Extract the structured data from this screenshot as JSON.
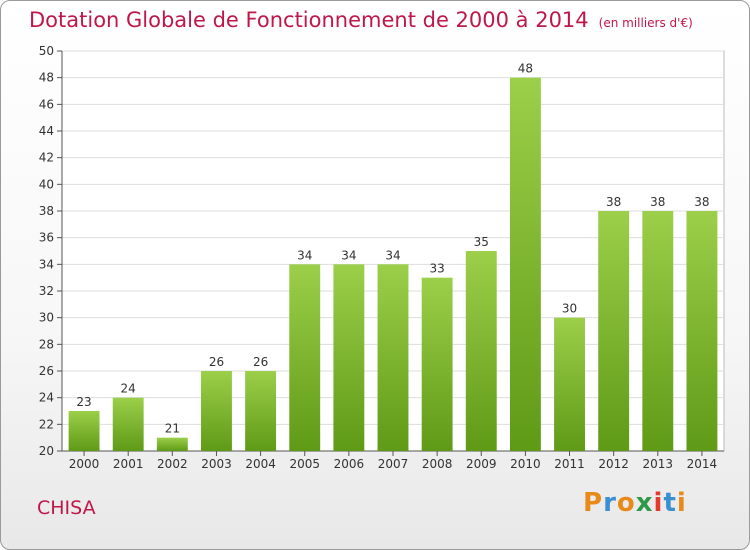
{
  "header": {
    "title": "Dotation Globale de Fonctionnement de 2000 à 2014",
    "unit": "(en milliers d'€)"
  },
  "footer": {
    "commune": "CHISA",
    "logo": "Proxiti"
  },
  "colors": {
    "accent": "#c0174b",
    "bar_top": "#9ccf4a",
    "bar_bottom": "#5f9a16",
    "logo_letters": [
      "#e88a1a",
      "#3a8fd0",
      "#e88a1a",
      "#2e9a48",
      "#e23a2c",
      "#3a8fd0",
      "#e88a1a"
    ]
  },
  "chart_data": {
    "type": "bar",
    "categories": [
      "2000",
      "2001",
      "2002",
      "2003",
      "2004",
      "2005",
      "2006",
      "2007",
      "2008",
      "2009",
      "2010",
      "2011",
      "2012",
      "2013",
      "2014"
    ],
    "values": [
      23,
      24,
      21,
      26,
      26,
      34,
      34,
      34,
      33,
      35,
      48,
      30,
      38,
      38,
      38
    ],
    "ylim": [
      20,
      50
    ],
    "yticks": [
      20,
      22,
      24,
      26,
      28,
      30,
      32,
      34,
      36,
      38,
      40,
      42,
      44,
      46,
      48,
      50
    ],
    "grid": true
  }
}
